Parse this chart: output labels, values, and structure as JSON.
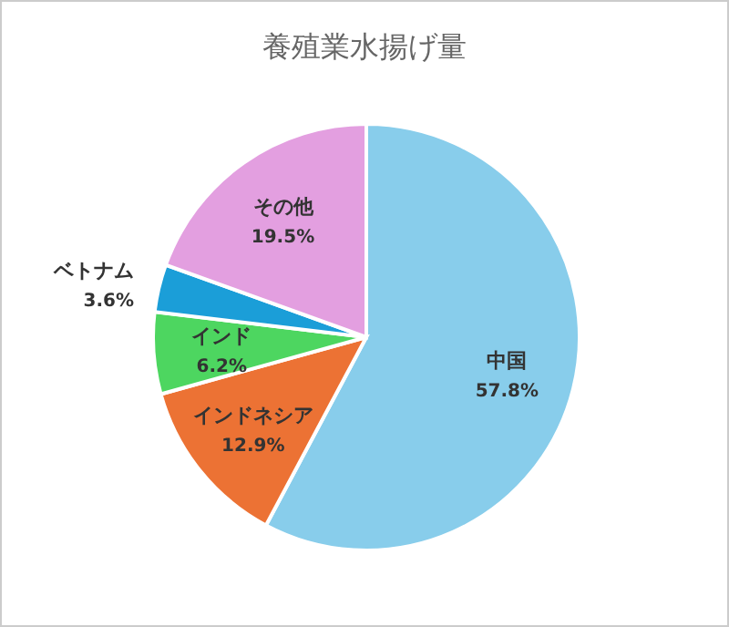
{
  "chart_data": {
    "type": "pie",
    "title": "養殖業水揚げ量",
    "categories": [
      "中国",
      "インドネシア",
      "インド",
      "ベトナム",
      "その他"
    ],
    "values": [
      57.8,
      12.9,
      6.2,
      3.6,
      19.5
    ],
    "colors": [
      "#88cdeb",
      "#ec7234",
      "#4dd660",
      "#1b9ed8",
      "#e39fe0"
    ],
    "value_labels": [
      "57.8%",
      "12.9%",
      "6.2%",
      "3.6%",
      "19.5%"
    ],
    "legend": false
  }
}
